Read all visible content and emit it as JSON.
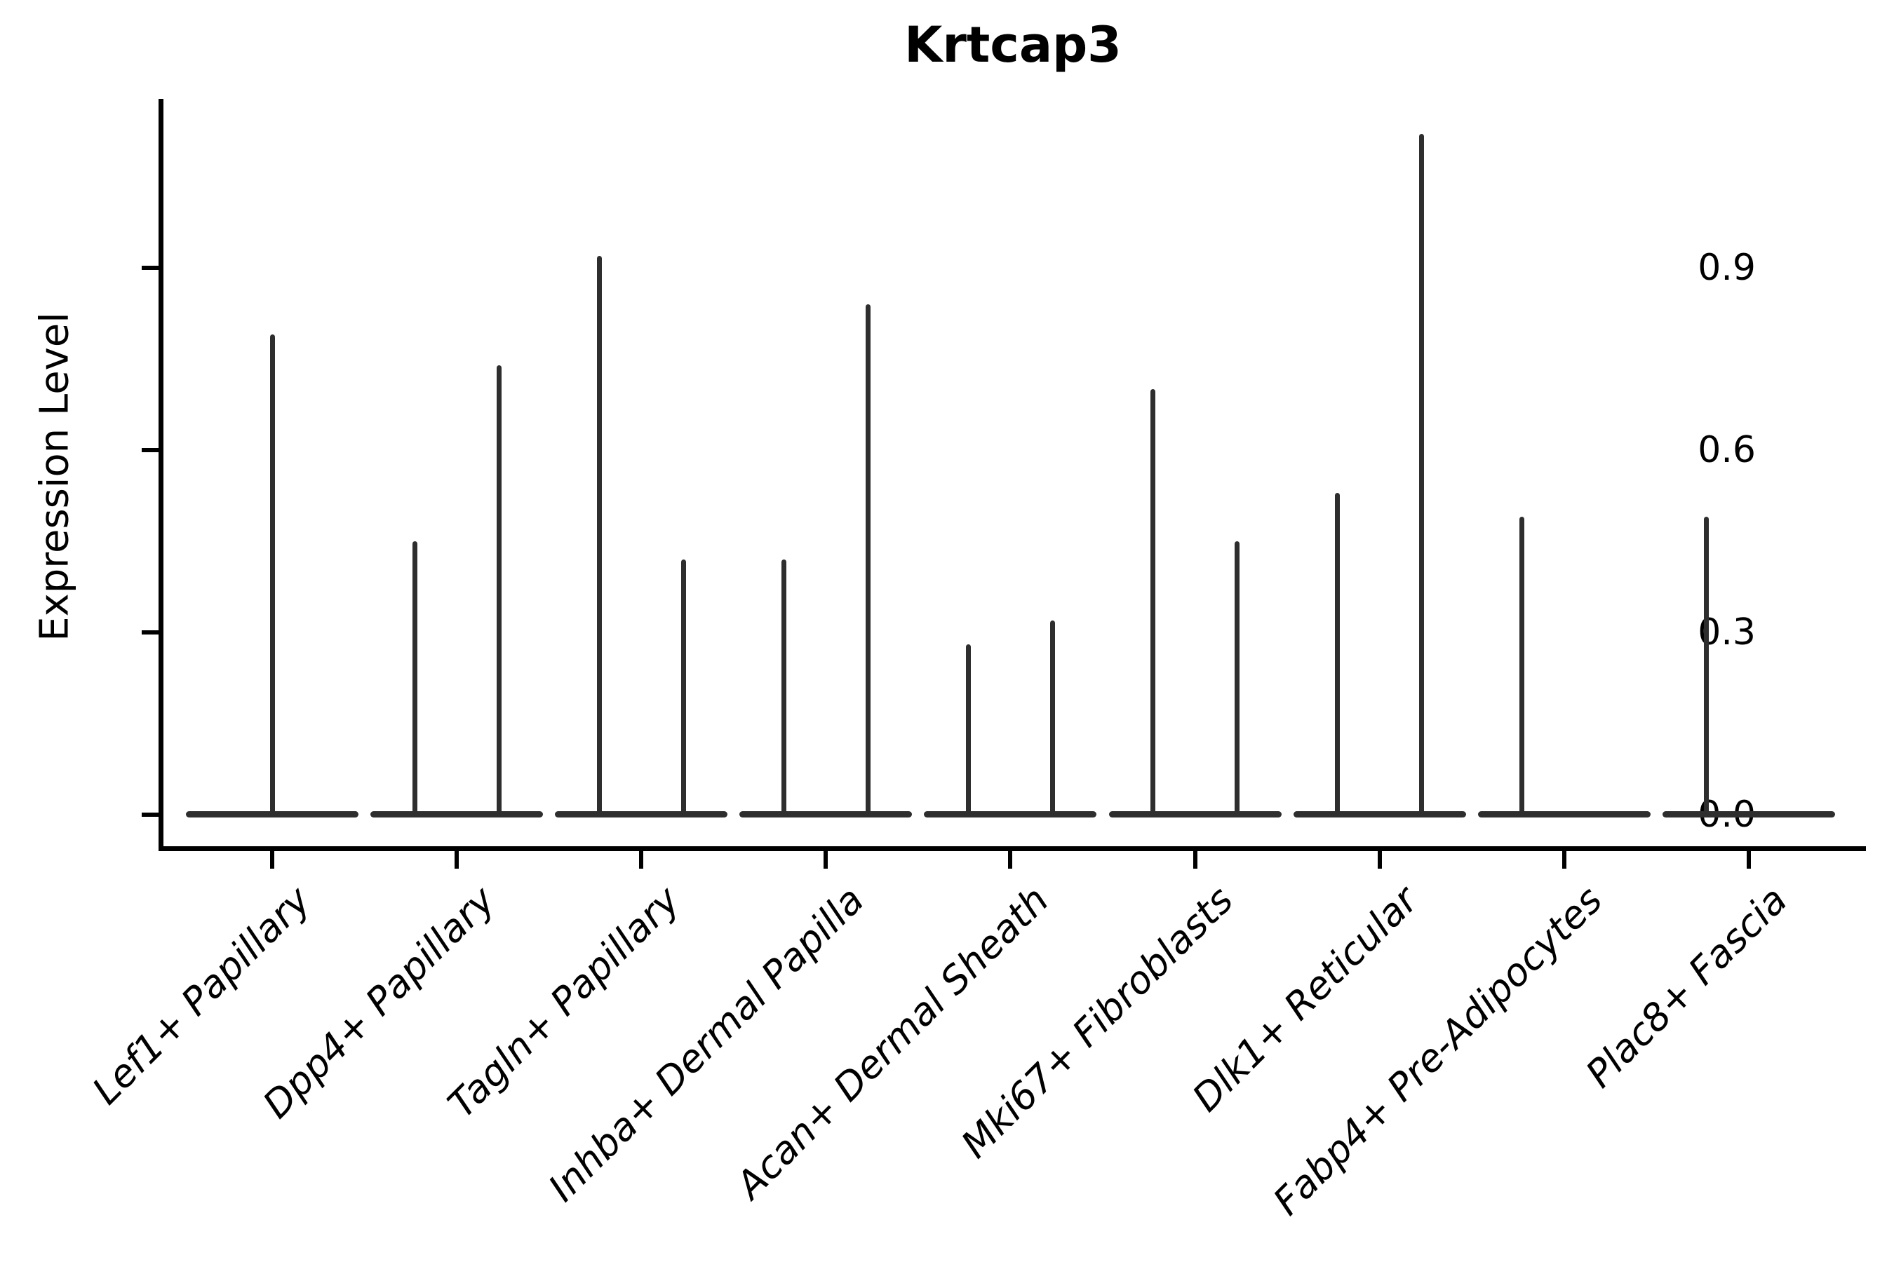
{
  "header": {
    "title": "Krtcap3"
  },
  "colors": {
    "violin_line": "#2e2e2e",
    "axis": "#000000",
    "text": "#000000",
    "background": "#ffffff"
  },
  "chart_data": {
    "type": "violin",
    "title": "Krtcap3",
    "xlabel": "",
    "ylabel": "Expression Level",
    "yticks": [
      0.0,
      0.3,
      0.6,
      0.9
    ],
    "ytick_labels": [
      "0.0",
      "0.3",
      "0.6",
      "0.9"
    ],
    "ylim_view": [
      -0.05,
      1.18
    ],
    "grid": false,
    "legend": "none",
    "spines": [
      "left",
      "bottom"
    ],
    "x_label_rotation_deg": 45,
    "baseline_value": 0.0,
    "note": "Density is concentrated at 0 so each violin collapses to a flat bar at 0 with thin vertical spikes reaching the peak expression value; categories with two spikes have two side-by-side (dodged) violins.",
    "categories": [
      "Lef1+ Papillary",
      "Dpp4+ Papillary",
      "Tagln+ Papillary",
      "Inhba+ Dermal Papilla",
      "Acan+ Dermal Sheath",
      "Mki67+ Fibroblasts",
      "Dlk1+ Reticular",
      "Fabp4+ Pre-Adipocytes",
      "Plac8+ Fascia"
    ],
    "violins": [
      {
        "category": "Lef1+ Papillary",
        "spikes": [
          {
            "position": "center",
            "peak": 0.79
          }
        ]
      },
      {
        "category": "Dpp4+ Papillary",
        "spikes": [
          {
            "position": "left",
            "peak": 0.45
          },
          {
            "position": "right",
            "peak": 0.74
          }
        ]
      },
      {
        "category": "Tagln+ Papillary",
        "spikes": [
          {
            "position": "left",
            "peak": 0.92
          },
          {
            "position": "right",
            "peak": 0.42
          }
        ]
      },
      {
        "category": "Inhba+ Dermal Papilla",
        "spikes": [
          {
            "position": "left",
            "peak": 0.42
          },
          {
            "position": "right",
            "peak": 0.84
          }
        ]
      },
      {
        "category": "Acan+ Dermal Sheath",
        "spikes": [
          {
            "position": "left",
            "peak": 0.28
          },
          {
            "position": "right",
            "peak": 0.32
          }
        ]
      },
      {
        "category": "Mki67+ Fibroblasts",
        "spikes": [
          {
            "position": "left",
            "peak": 0.7
          },
          {
            "position": "right",
            "peak": 0.45
          }
        ]
      },
      {
        "category": "Dlk1+ Reticular",
        "spikes": [
          {
            "position": "left",
            "peak": 0.53
          },
          {
            "position": "right",
            "peak": 1.12
          }
        ]
      },
      {
        "category": "Fabp4+ Pre-Adipocytes",
        "spikes": [
          {
            "position": "left",
            "peak": 0.49
          }
        ]
      },
      {
        "category": "Plac8+ Fascia",
        "spikes": [
          {
            "position": "left",
            "peak": 0.49
          }
        ]
      }
    ]
  }
}
